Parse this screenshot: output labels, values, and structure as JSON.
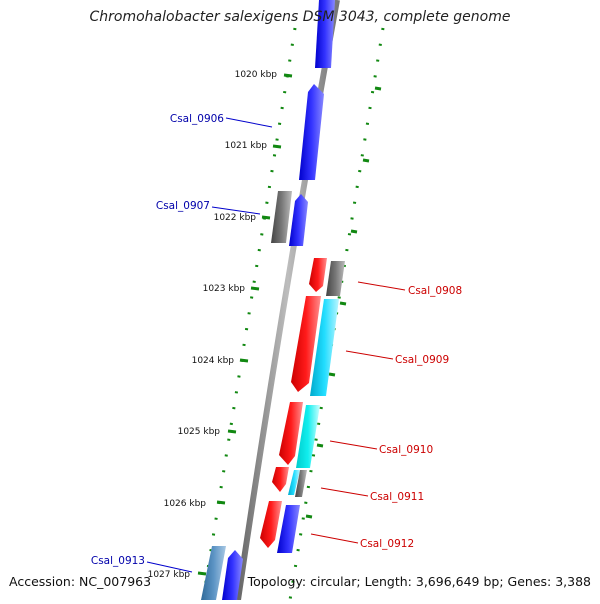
{
  "header": {
    "title": "Chromohalobacter salexigens DSM 3043, complete genome"
  },
  "footer": {
    "accession": "Accession: NC_007963",
    "summary": "Topology: circular; Length: 3,696,649 bp; Genes: 3,388"
  },
  "colors": {
    "forward_gene": "#0000ee",
    "reverse_gene": "#ee0000",
    "cyan_gene": "#00cccc",
    "grey_gene": "#666666",
    "steel_gene": "#4682b4",
    "backbone": "#888888",
    "ticks": "#118811",
    "label_forward": "#0000aa",
    "label_reverse": "#cc0000"
  },
  "kbp_labels": [
    "1020 kbp",
    "1021 kbp",
    "1022 kbp",
    "1023 kbp",
    "1024 kbp",
    "1025 kbp",
    "1026 kbp",
    "1027 kbp"
  ],
  "genes": [
    {
      "name": "Csal_0906",
      "strand": "forward"
    },
    {
      "name": "Csal_0907",
      "strand": "forward"
    },
    {
      "name": "Csal_0908",
      "strand": "reverse"
    },
    {
      "name": "Csal_0909",
      "strand": "reverse"
    },
    {
      "name": "Csal_0910",
      "strand": "reverse"
    },
    {
      "name": "Csal_0911",
      "strand": "reverse"
    },
    {
      "name": "Csal_0912",
      "strand": "reverse"
    },
    {
      "name": "Csal_0913",
      "strand": "forward"
    }
  ]
}
